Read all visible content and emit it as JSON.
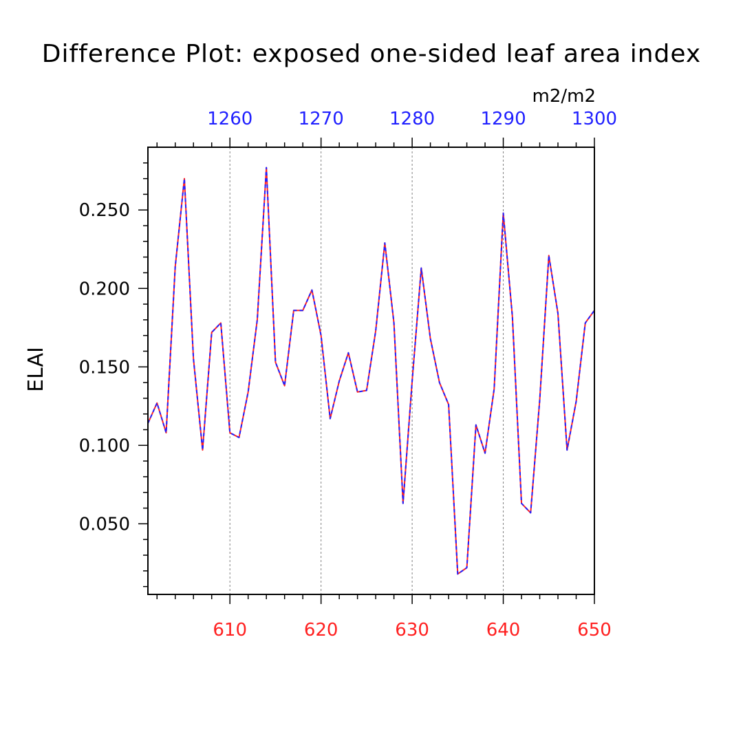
{
  "chart_data": {
    "type": "line",
    "title": "Difference Plot: exposed one-sided leaf area index",
    "units": "m2/m2",
    "ylabel": "ELAI",
    "xlim": [
      601,
      650
    ],
    "ylim": [
      0.005,
      0.29
    ],
    "y_ticks": [
      {
        "value": 0.05,
        "label": "0.050"
      },
      {
        "value": 0.1,
        "label": "0.100"
      },
      {
        "value": 0.15,
        "label": "0.150"
      },
      {
        "value": 0.2,
        "label": "0.200"
      },
      {
        "value": 0.25,
        "label": "0.250"
      }
    ],
    "x_bottom_ticks": [
      {
        "value": 610,
        "label": "610"
      },
      {
        "value": 620,
        "label": "620"
      },
      {
        "value": 630,
        "label": "630"
      },
      {
        "value": 640,
        "label": "640"
      },
      {
        "value": 650,
        "label": "650"
      }
    ],
    "x_top_ticks": [
      {
        "value": 610,
        "label": "1260"
      },
      {
        "value": 620,
        "label": "1270"
      },
      {
        "value": 630,
        "label": "1280"
      },
      {
        "value": 640,
        "label": "1290"
      },
      {
        "value": 650,
        "label": "1300"
      }
    ],
    "vertical_gridlines": [
      610,
      620,
      630,
      640
    ],
    "x": [
      601,
      602,
      603,
      604,
      605,
      606,
      607,
      608,
      609,
      610,
      611,
      612,
      613,
      614,
      615,
      616,
      617,
      618,
      619,
      620,
      621,
      622,
      623,
      624,
      625,
      626,
      627,
      628,
      629,
      630,
      631,
      632,
      633,
      634,
      635,
      636,
      637,
      638,
      639,
      640,
      641,
      642,
      643,
      644,
      645,
      646,
      647,
      648,
      649,
      650
    ],
    "series": [
      {
        "line_color": "#ff2020",
        "values": [
          0.114,
          0.127,
          0.108,
          0.214,
          0.27,
          0.155,
          0.097,
          0.172,
          0.178,
          0.108,
          0.105,
          0.134,
          0.18,
          0.277,
          0.153,
          0.138,
          0.186,
          0.186,
          0.199,
          0.17,
          0.117,
          0.141,
          0.159,
          0.134,
          0.135,
          0.173,
          0.229,
          0.178,
          0.063,
          0.141,
          0.213,
          0.168,
          0.14,
          0.126,
          0.018,
          0.022,
          0.113,
          0.095,
          0.136,
          0.248,
          0.182,
          0.063,
          0.057,
          0.129,
          0.221,
          0.184,
          0.097,
          0.128,
          0.178,
          0.186
        ]
      },
      {
        "line_color": "#2020ff",
        "values": [
          0.114,
          0.127,
          0.108,
          0.214,
          0.27,
          0.155,
          0.097,
          0.172,
          0.178,
          0.108,
          0.105,
          0.134,
          0.18,
          0.277,
          0.153,
          0.138,
          0.186,
          0.186,
          0.199,
          0.17,
          0.117,
          0.141,
          0.159,
          0.134,
          0.135,
          0.173,
          0.229,
          0.178,
          0.063,
          0.141,
          0.213,
          0.168,
          0.14,
          0.126,
          0.018,
          0.022,
          0.113,
          0.095,
          0.136,
          0.248,
          0.182,
          0.063,
          0.057,
          0.129,
          0.221,
          0.184,
          0.097,
          0.128,
          0.178,
          0.186
        ]
      }
    ],
    "colors": {
      "bottom_axis_labels": "#ff2020",
      "top_axis_labels": "#2020ff",
      "frame": "#000000",
      "gridline": "#808080"
    }
  }
}
